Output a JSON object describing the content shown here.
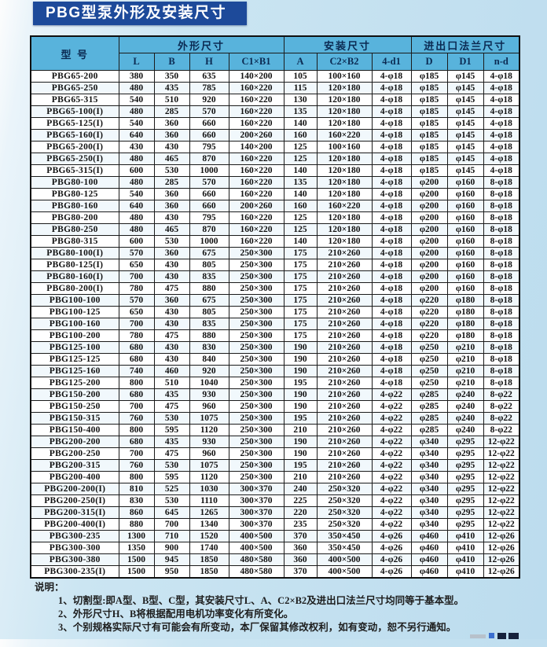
{
  "title": "PBG型泵外形及安装尺寸",
  "colors": {
    "banner_bg": "#1d4a9a",
    "banner_text": "#ffffff",
    "header_bg": "#58b3dc",
    "header_text": "#0b2a52",
    "page_bg": "#c6e3f1",
    "grid_line": "#1b1b1b"
  },
  "table": {
    "model_header": "型  号",
    "groups": [
      {
        "label": "外形尺寸",
        "cols": [
          "L",
          "B",
          "H",
          "C1×B1"
        ]
      },
      {
        "label": "安装尺寸",
        "cols": [
          "A",
          "C2×B2",
          "4-d1"
        ]
      },
      {
        "label": "进出口法兰尺寸",
        "cols": [
          "D",
          "D1",
          "n-d"
        ]
      }
    ],
    "rows": [
      [
        "PBG65-200",
        "380",
        "350",
        "635",
        "140×200",
        "105",
        "100×160",
        "4-φ18",
        "φ185",
        "φ145",
        "4-φ18"
      ],
      [
        "PBG65-250",
        "480",
        "435",
        "785",
        "160×220",
        "115",
        "120×180",
        "4-φ18",
        "φ185",
        "φ145",
        "4-φ18"
      ],
      [
        "PBG65-315",
        "540",
        "510",
        "920",
        "160×220",
        "130",
        "120×180",
        "4-φ18",
        "φ185",
        "φ145",
        "4-φ18"
      ],
      [
        "PBG65-100(I)",
        "480",
        "285",
        "570",
        "160×220",
        "135",
        "120×180",
        "4-φ18",
        "φ185",
        "φ145",
        "4-φ18"
      ],
      [
        "PBG65-125(I)",
        "540",
        "360",
        "660",
        "160×220",
        "140",
        "120×180",
        "4-φ18",
        "φ185",
        "φ145",
        "4-φ18"
      ],
      [
        "PBG65-160(I)",
        "640",
        "360",
        "660",
        "200×260",
        "160",
        "160×220",
        "4-φ18",
        "φ185",
        "φ145",
        "4-φ18"
      ],
      [
        "PBG65-200(I)",
        "430",
        "430",
        "795",
        "140×200",
        "125",
        "100×160",
        "4-φ18",
        "φ185",
        "φ145",
        "4-φ18"
      ],
      [
        "PBG65-250(I)",
        "480",
        "465",
        "870",
        "160×220",
        "125",
        "120×180",
        "4-φ18",
        "φ185",
        "φ145",
        "4-φ18"
      ],
      [
        "PBG65-315(I)",
        "600",
        "530",
        "1000",
        "160×220",
        "140",
        "120×180",
        "4-φ18",
        "φ185",
        "φ145",
        "4-φ18"
      ],
      [
        "PBG80-100",
        "480",
        "285",
        "570",
        "160×220",
        "135",
        "120×180",
        "4-φ18",
        "φ200",
        "φ160",
        "8-φ18"
      ],
      [
        "PBG80-125",
        "540",
        "360",
        "660",
        "160×220",
        "140",
        "120×180",
        "4-φ18",
        "φ200",
        "φ160",
        "8-φ18"
      ],
      [
        "PBG80-160",
        "640",
        "360",
        "660",
        "200×260",
        "160",
        "160×220",
        "4-φ18",
        "φ200",
        "φ160",
        "8-φ18"
      ],
      [
        "PBG80-200",
        "480",
        "430",
        "795",
        "160×220",
        "125",
        "120×180",
        "4-φ18",
        "φ200",
        "φ160",
        "8-φ18"
      ],
      [
        "PBG80-250",
        "480",
        "465",
        "870",
        "160×220",
        "125",
        "120×180",
        "4-φ18",
        "φ200",
        "φ160",
        "8-φ18"
      ],
      [
        "PBG80-315",
        "600",
        "530",
        "1000",
        "160×220",
        "140",
        "120×180",
        "4-φ18",
        "φ200",
        "φ160",
        "8-φ18"
      ],
      [
        "PBG80-100(I)",
        "570",
        "360",
        "675",
        "250×300",
        "175",
        "210×260",
        "4-φ18",
        "φ200",
        "φ160",
        "8-φ18"
      ],
      [
        "PBG80-125(I)",
        "650",
        "430",
        "805",
        "250×300",
        "175",
        "210×260",
        "4-φ18",
        "φ200",
        "φ160",
        "8-φ18"
      ],
      [
        "PBG80-160(I)",
        "700",
        "430",
        "835",
        "250×300",
        "175",
        "210×260",
        "4-φ18",
        "φ200",
        "φ160",
        "8-φ18"
      ],
      [
        "PBG80-200(I)",
        "780",
        "475",
        "880",
        "250×300",
        "175",
        "210×260",
        "4-φ18",
        "φ200",
        "φ160",
        "8-φ18"
      ],
      [
        "PBG100-100",
        "570",
        "360",
        "675",
        "250×300",
        "175",
        "210×260",
        "4-φ18",
        "φ220",
        "φ180",
        "8-φ18"
      ],
      [
        "PBG100-125",
        "650",
        "430",
        "805",
        "250×300",
        "175",
        "210×260",
        "4-φ18",
        "φ220",
        "φ180",
        "8-φ18"
      ],
      [
        "PBG100-160",
        "700",
        "430",
        "835",
        "250×300",
        "175",
        "210×260",
        "4-φ18",
        "φ220",
        "φ180",
        "8-φ18"
      ],
      [
        "PBG100-200",
        "780",
        "475",
        "880",
        "250×300",
        "175",
        "210×260",
        "4-φ18",
        "φ220",
        "φ180",
        "8-φ18"
      ],
      [
        "PBG125-100",
        "680",
        "430",
        "830",
        "250×300",
        "190",
        "210×260",
        "4-φ18",
        "φ250",
        "φ210",
        "8-φ18"
      ],
      [
        "PBG125-125",
        "680",
        "430",
        "840",
        "250×300",
        "190",
        "210×260",
        "4-φ18",
        "φ250",
        "φ210",
        "8-φ18"
      ],
      [
        "PBG125-160",
        "740",
        "460",
        "920",
        "250×300",
        "190",
        "210×260",
        "4-φ18",
        "φ250",
        "φ210",
        "8-φ18"
      ],
      [
        "PBG125-200",
        "800",
        "510",
        "1040",
        "250×300",
        "195",
        "210×260",
        "4-φ18",
        "φ250",
        "φ210",
        "8-φ18"
      ],
      [
        "PBG150-200",
        "680",
        "435",
        "930",
        "250×300",
        "190",
        "210×260",
        "4-φ22",
        "φ285",
        "φ240",
        "8-φ22"
      ],
      [
        "PBG150-250",
        "700",
        "475",
        "960",
        "250×300",
        "190",
        "210×260",
        "4-φ22",
        "φ285",
        "φ240",
        "8-φ22"
      ],
      [
        "PBG150-315",
        "760",
        "530",
        "1075",
        "250×300",
        "195",
        "210×260",
        "4-φ22",
        "φ285",
        "φ240",
        "8-φ22"
      ],
      [
        "PBG150-400",
        "800",
        "595",
        "1120",
        "250×300",
        "210",
        "210×260",
        "4-φ22",
        "φ285",
        "φ240",
        "8-φ22"
      ],
      [
        "PBG200-200",
        "680",
        "435",
        "930",
        "250×300",
        "190",
        "210×260",
        "4-φ22",
        "φ340",
        "φ295",
        "12-φ22"
      ],
      [
        "PBG200-250",
        "700",
        "475",
        "960",
        "250×300",
        "190",
        "210×260",
        "4-φ22",
        "φ340",
        "φ295",
        "12-φ22"
      ],
      [
        "PBG200-315",
        "760",
        "530",
        "1075",
        "250×300",
        "195",
        "210×260",
        "4-φ22",
        "φ340",
        "φ295",
        "12-φ22"
      ],
      [
        "PBG200-400",
        "800",
        "595",
        "1120",
        "250×300",
        "210",
        "210×260",
        "4-φ22",
        "φ340",
        "φ295",
        "12-φ22"
      ],
      [
        "PBG200-200(I)",
        "810",
        "525",
        "1030",
        "300×370",
        "240",
        "250×320",
        "4-φ22",
        "φ340",
        "φ295",
        "12-φ22"
      ],
      [
        "PBG200-250(I)",
        "830",
        "530",
        "1110",
        "300×370",
        "225",
        "250×320",
        "4-φ22",
        "φ340",
        "φ295",
        "12-φ22"
      ],
      [
        "PBG200-315(I)",
        "860",
        "645",
        "1265",
        "300×370",
        "220",
        "250×320",
        "4-φ22",
        "φ340",
        "φ295",
        "12-φ22"
      ],
      [
        "PBG200-400(I)",
        "880",
        "700",
        "1340",
        "300×370",
        "235",
        "250×320",
        "4-φ22",
        "φ340",
        "φ295",
        "12-φ22"
      ],
      [
        "PBG300-235",
        "1300",
        "710",
        "1520",
        "400×500",
        "370",
        "350×450",
        "4-φ26",
        "φ460",
        "φ410",
        "12-φ26"
      ],
      [
        "PBG300-300",
        "1350",
        "900",
        "1740",
        "400×500",
        "360",
        "350×450",
        "4-φ26",
        "φ460",
        "φ410",
        "12-φ26"
      ],
      [
        "PBG300-380",
        "1500",
        "945",
        "1850",
        "480×580",
        "360",
        "400×500",
        "4-φ26",
        "φ460",
        "φ410",
        "12-φ26"
      ],
      [
        "PBG300-235(I)",
        "1500",
        "950",
        "1850",
        "480×580",
        "370",
        "400×500",
        "4-φ26",
        "φ460",
        "φ410",
        "12-φ26"
      ]
    ]
  },
  "notes": {
    "label": "说明：",
    "items": [
      "1、切割型:即A型、B型、C型，其安装尺寸L、A、C2×B2及进出口法兰尺寸均同等于基本型。",
      "2、外形尺寸H、B将根据配用电机功率变化有所变化。",
      "3、个别规格实际尺寸有可能会有所变动，本厂保留其修改权利，如有变动，恕不另行通知。"
    ]
  }
}
